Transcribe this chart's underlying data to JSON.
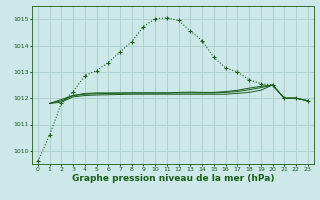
{
  "background_color": "#cce8e8",
  "grid_color": "#aacccc",
  "line_color_main": "#1a5c1a",
  "xlabel": "Graphe pression niveau de la mer (hPa)",
  "xlabel_fontsize": 6.5,
  "ylim": [
    1009.5,
    1015.5
  ],
  "xlim": [
    -0.5,
    23.5
  ],
  "yticks": [
    1010,
    1011,
    1012,
    1013,
    1014,
    1015
  ],
  "xticks": [
    0,
    1,
    2,
    3,
    4,
    5,
    6,
    7,
    8,
    9,
    10,
    11,
    12,
    13,
    14,
    15,
    16,
    17,
    18,
    19,
    20,
    21,
    22,
    23
  ],
  "series1_x": [
    0,
    1,
    2,
    3,
    4,
    5,
    6,
    7,
    8,
    9,
    10,
    11,
    12,
    13,
    14,
    15,
    16,
    17,
    18,
    19,
    20,
    21,
    22,
    23
  ],
  "series1_y": [
    1009.6,
    1010.6,
    1011.8,
    1012.25,
    1012.85,
    1013.05,
    1013.35,
    1013.75,
    1014.15,
    1014.72,
    1015.02,
    1015.05,
    1014.95,
    1014.55,
    1014.18,
    1013.55,
    1013.15,
    1013.0,
    1012.7,
    1012.55,
    1012.5,
    1012.0,
    1012.0,
    1011.9
  ],
  "series2_x": [
    1,
    2,
    3,
    4,
    5,
    6,
    7,
    8,
    9,
    10,
    11,
    12,
    13,
    14,
    15,
    16,
    17,
    18,
    19,
    20,
    21,
    22,
    23
  ],
  "series2_y": [
    1011.8,
    1011.95,
    1012.1,
    1012.15,
    1012.17,
    1012.18,
    1012.19,
    1012.2,
    1012.2,
    1012.2,
    1012.2,
    1012.22,
    1012.23,
    1012.22,
    1012.22,
    1012.25,
    1012.3,
    1012.38,
    1012.45,
    1012.5,
    1012.0,
    1012.0,
    1011.9
  ],
  "series3_x": [
    1,
    2,
    3,
    4,
    5,
    6,
    7,
    8,
    9,
    10,
    11,
    12,
    13,
    14,
    15,
    16,
    17,
    18,
    19,
    20,
    21,
    22,
    23
  ],
  "series3_y": [
    1011.8,
    1011.9,
    1012.1,
    1012.18,
    1012.2,
    1012.2,
    1012.2,
    1012.2,
    1012.2,
    1012.2,
    1012.2,
    1012.2,
    1012.2,
    1012.2,
    1012.2,
    1012.22,
    1012.25,
    1012.32,
    1012.4,
    1012.5,
    1012.0,
    1012.0,
    1011.9
  ],
  "series4_x": [
    1,
    2,
    3,
    4,
    5,
    6,
    7,
    8,
    9,
    10,
    11,
    12,
    13,
    14,
    15,
    16,
    17,
    18,
    19,
    20,
    21,
    22,
    23
  ],
  "series4_y": [
    1011.8,
    1011.85,
    1012.05,
    1012.1,
    1012.12,
    1012.13,
    1012.14,
    1012.15,
    1012.15,
    1012.15,
    1012.15,
    1012.15,
    1012.15,
    1012.15,
    1012.15,
    1012.15,
    1012.18,
    1012.22,
    1012.3,
    1012.5,
    1012.0,
    1012.0,
    1011.9
  ]
}
